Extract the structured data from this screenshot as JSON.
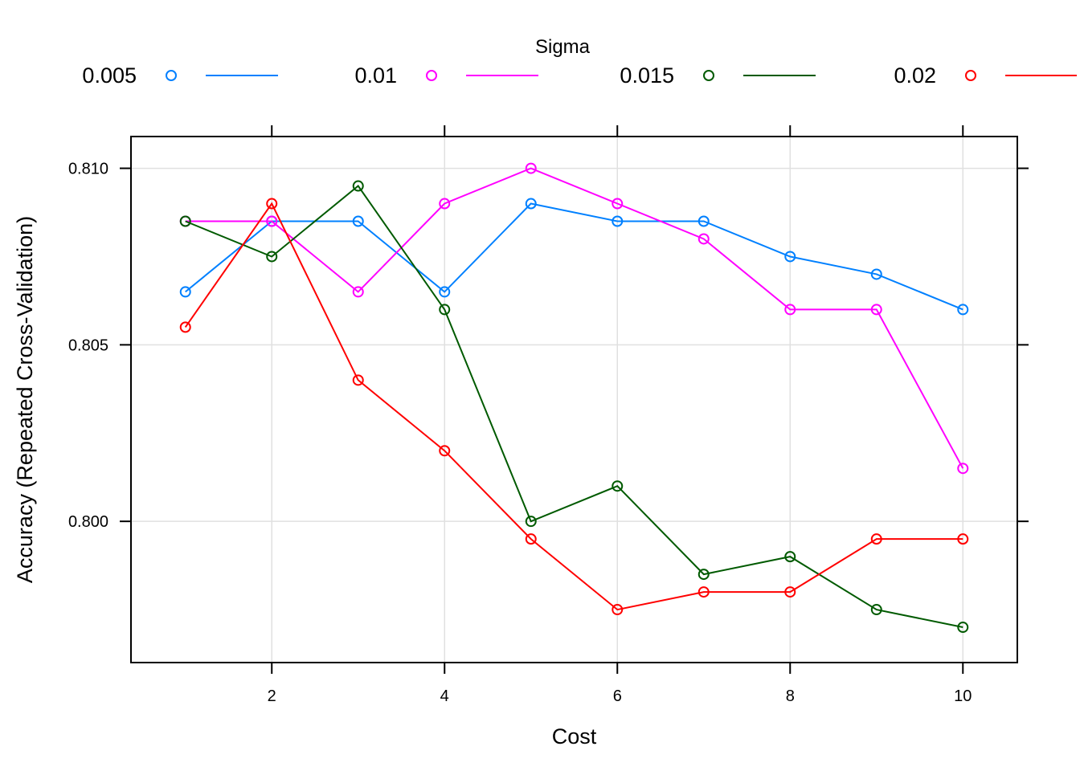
{
  "chart_data": {
    "type": "line",
    "title": "",
    "xlabel": "Cost",
    "ylabel": "Accuracy (Repeated Cross-Validation)",
    "legend_title": "Sigma",
    "legend_position": "top",
    "grid": true,
    "xlim": [
      0.37,
      10.63
    ],
    "ylim": [
      0.796,
      0.8109
    ],
    "x_ticks": [
      2,
      4,
      6,
      8,
      10
    ],
    "x_tick_labels": [
      "2",
      "4",
      "6",
      "8",
      "10"
    ],
    "y_ticks": [
      0.8,
      0.805,
      0.81
    ],
    "y_tick_labels": [
      "0.800",
      "0.805",
      "0.810"
    ],
    "x": [
      1,
      2,
      3,
      4,
      5,
      6,
      7,
      8,
      9,
      10
    ],
    "series": [
      {
        "name": "0.005",
        "color": "#0080ff",
        "values": [
          0.8065,
          0.8085,
          0.8085,
          0.8065,
          0.809,
          0.8085,
          0.8085,
          0.8075,
          0.807,
          0.806
        ]
      },
      {
        "name": "0.01",
        "color": "#ff00ff",
        "values": [
          0.8085,
          0.8085,
          0.8065,
          0.809,
          0.81,
          0.809,
          0.808,
          0.806,
          0.806,
          0.8015
        ]
      },
      {
        "name": "0.015",
        "color": "#005a00",
        "values": [
          0.8085,
          0.8075,
          0.8095,
          0.806,
          0.8,
          0.801,
          0.7985,
          0.799,
          0.7975,
          0.797
        ]
      },
      {
        "name": "0.02",
        "color": "#ff0000",
        "values": [
          0.8055,
          0.809,
          0.804,
          0.802,
          0.7995,
          0.7975,
          0.798,
          0.798,
          0.7995,
          0.7995
        ]
      }
    ]
  }
}
